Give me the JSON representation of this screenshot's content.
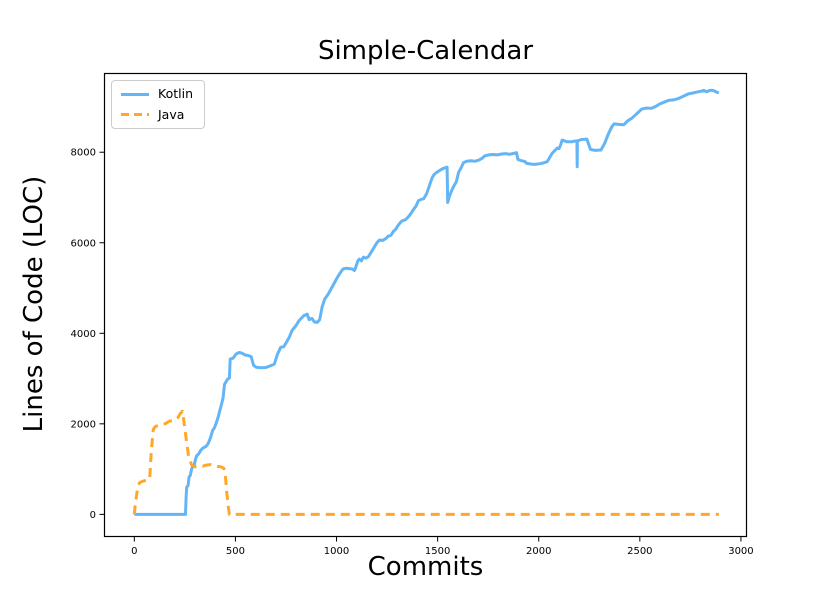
{
  "chart_data": {
    "type": "line",
    "title": "Simple-Calendar",
    "xlabel": "Commits",
    "ylabel": "Lines of Code (LOC)",
    "xlim": [
      -150,
      3030
    ],
    "ylim": [
      -500,
      9750
    ],
    "xticks": [
      0,
      500,
      1000,
      1500,
      2000,
      2500,
      3000
    ],
    "yticks": [
      0,
      2000,
      4000,
      6000,
      8000
    ],
    "grid": false,
    "legend_position": "upper-left",
    "axis_color": "#000000",
    "background_color": "#ffffff",
    "series": [
      {
        "name": "Kotlin",
        "color": "#64B5F6",
        "line_style": "solid",
        "points": [
          [
            0,
            0
          ],
          [
            253,
            0
          ],
          [
            256,
            380
          ],
          [
            259,
            600
          ],
          [
            266,
            640
          ],
          [
            271,
            830
          ],
          [
            277,
            860
          ],
          [
            283,
            1000
          ],
          [
            289,
            1060
          ],
          [
            296,
            1090
          ],
          [
            302,
            1210
          ],
          [
            309,
            1300
          ],
          [
            317,
            1330
          ],
          [
            329,
            1420
          ],
          [
            341,
            1470
          ],
          [
            354,
            1500
          ],
          [
            365,
            1560
          ],
          [
            377,
            1700
          ],
          [
            387,
            1850
          ],
          [
            397,
            1920
          ],
          [
            406,
            2030
          ],
          [
            415,
            2150
          ],
          [
            423,
            2300
          ],
          [
            431,
            2430
          ],
          [
            439,
            2580
          ],
          [
            446,
            2870
          ],
          [
            454,
            2930
          ],
          [
            462,
            2990
          ],
          [
            470,
            3010
          ],
          [
            474,
            3430
          ],
          [
            488,
            3450
          ],
          [
            503,
            3540
          ],
          [
            518,
            3575
          ],
          [
            533,
            3560
          ],
          [
            548,
            3520
          ],
          [
            563,
            3510
          ],
          [
            578,
            3480
          ],
          [
            590,
            3290
          ],
          [
            602,
            3250
          ],
          [
            626,
            3240
          ],
          [
            650,
            3245
          ],
          [
            672,
            3280
          ],
          [
            692,
            3320
          ],
          [
            708,
            3540
          ],
          [
            724,
            3690
          ],
          [
            739,
            3705
          ],
          [
            752,
            3800
          ],
          [
            766,
            3910
          ],
          [
            780,
            4060
          ],
          [
            798,
            4160
          ],
          [
            815,
            4280
          ],
          [
            838,
            4390
          ],
          [
            855,
            4425
          ],
          [
            865,
            4300
          ],
          [
            878,
            4330
          ],
          [
            891,
            4250
          ],
          [
            904,
            4240
          ],
          [
            917,
            4300
          ],
          [
            928,
            4570
          ],
          [
            941,
            4750
          ],
          [
            957,
            4850
          ],
          [
            973,
            4980
          ],
          [
            989,
            5110
          ],
          [
            1005,
            5240
          ],
          [
            1019,
            5340
          ],
          [
            1032,
            5420
          ],
          [
            1047,
            5435
          ],
          [
            1063,
            5430
          ],
          [
            1077,
            5420
          ],
          [
            1089,
            5390
          ],
          [
            1097,
            5480
          ],
          [
            1105,
            5600
          ],
          [
            1113,
            5640
          ],
          [
            1123,
            5600
          ],
          [
            1133,
            5680
          ],
          [
            1145,
            5660
          ],
          [
            1157,
            5690
          ],
          [
            1171,
            5790
          ],
          [
            1185,
            5890
          ],
          [
            1201,
            6010
          ],
          [
            1213,
            6060
          ],
          [
            1227,
            6050
          ],
          [
            1243,
            6090
          ],
          [
            1257,
            6150
          ],
          [
            1269,
            6165
          ],
          [
            1281,
            6250
          ],
          [
            1293,
            6300
          ],
          [
            1307,
            6400
          ],
          [
            1323,
            6480
          ],
          [
            1339,
            6505
          ],
          [
            1353,
            6560
          ],
          [
            1367,
            6640
          ],
          [
            1381,
            6740
          ],
          [
            1393,
            6810
          ],
          [
            1405,
            6930
          ],
          [
            1419,
            6960
          ],
          [
            1431,
            6970
          ],
          [
            1445,
            7080
          ],
          [
            1455,
            7200
          ],
          [
            1465,
            7340
          ],
          [
            1473,
            7440
          ],
          [
            1483,
            7510
          ],
          [
            1497,
            7560
          ],
          [
            1511,
            7600
          ],
          [
            1525,
            7635
          ],
          [
            1539,
            7660
          ],
          [
            1547,
            7670
          ],
          [
            1550,
            6890
          ],
          [
            1557,
            7010
          ],
          [
            1569,
            7150
          ],
          [
            1581,
            7260
          ],
          [
            1593,
            7350
          ],
          [
            1603,
            7550
          ],
          [
            1615,
            7650
          ],
          [
            1628,
            7770
          ],
          [
            1644,
            7800
          ],
          [
            1664,
            7810
          ],
          [
            1684,
            7800
          ],
          [
            1704,
            7825
          ],
          [
            1718,
            7860
          ],
          [
            1734,
            7920
          ],
          [
            1752,
            7940
          ],
          [
            1774,
            7950
          ],
          [
            1796,
            7940
          ],
          [
            1816,
            7960
          ],
          [
            1836,
            7970
          ],
          [
            1856,
            7955
          ],
          [
            1876,
            7975
          ],
          [
            1890,
            7990
          ],
          [
            1897,
            7840
          ],
          [
            1916,
            7810
          ],
          [
            1930,
            7800
          ],
          [
            1938,
            7760
          ],
          [
            1958,
            7740
          ],
          [
            1980,
            7730
          ],
          [
            2002,
            7745
          ],
          [
            2020,
            7760
          ],
          [
            2042,
            7790
          ],
          [
            2056,
            7900
          ],
          [
            2066,
            7975
          ],
          [
            2080,
            8040
          ],
          [
            2092,
            8090
          ],
          [
            2100,
            8080
          ],
          [
            2108,
            8160
          ],
          [
            2116,
            8270
          ],
          [
            2140,
            8230
          ],
          [
            2162,
            8230
          ],
          [
            2178,
            8245
          ],
          [
            2189,
            8250
          ],
          [
            2190,
            7680
          ],
          [
            2191,
            8250
          ],
          [
            2212,
            8280
          ],
          [
            2238,
            8290
          ],
          [
            2256,
            8060
          ],
          [
            2280,
            8040
          ],
          [
            2308,
            8050
          ],
          [
            2326,
            8200
          ],
          [
            2344,
            8400
          ],
          [
            2360,
            8550
          ],
          [
            2372,
            8625
          ],
          [
            2396,
            8615
          ],
          [
            2420,
            8605
          ],
          [
            2442,
            8700
          ],
          [
            2460,
            8750
          ],
          [
            2476,
            8815
          ],
          [
            2492,
            8880
          ],
          [
            2508,
            8950
          ],
          [
            2530,
            8975
          ],
          [
            2558,
            8970
          ],
          [
            2580,
            9015
          ],
          [
            2598,
            9065
          ],
          [
            2620,
            9105
          ],
          [
            2642,
            9145
          ],
          [
            2666,
            9155
          ],
          [
            2690,
            9185
          ],
          [
            2715,
            9235
          ],
          [
            2738,
            9285
          ],
          [
            2760,
            9305
          ],
          [
            2780,
            9325
          ],
          [
            2800,
            9345
          ],
          [
            2816,
            9365
          ],
          [
            2830,
            9335
          ],
          [
            2846,
            9365
          ],
          [
            2862,
            9365
          ],
          [
            2877,
            9332
          ],
          [
            2891,
            9310
          ]
        ]
      },
      {
        "name": "Java",
        "color": "#FFA726",
        "line_style": "dashed",
        "points": [
          [
            0,
            0
          ],
          [
            4,
            180
          ],
          [
            10,
            400
          ],
          [
            18,
            620
          ],
          [
            26,
            700
          ],
          [
            40,
            730
          ],
          [
            56,
            750
          ],
          [
            68,
            760
          ],
          [
            76,
            790
          ],
          [
            84,
            1400
          ],
          [
            94,
            1880
          ],
          [
            104,
            1940
          ],
          [
            118,
            1965
          ],
          [
            134,
            1990
          ],
          [
            154,
            2005
          ],
          [
            174,
            2060
          ],
          [
            198,
            2075
          ],
          [
            216,
            2140
          ],
          [
            228,
            2230
          ],
          [
            238,
            2280
          ],
          [
            248,
            1950
          ],
          [
            257,
            1650
          ],
          [
            268,
            1300
          ],
          [
            282,
            1100
          ],
          [
            298,
            1050
          ],
          [
            318,
            1060
          ],
          [
            338,
            1065
          ],
          [
            358,
            1090
          ],
          [
            378,
            1100
          ],
          [
            398,
            1080
          ],
          [
            414,
            1060
          ],
          [
            428,
            1050
          ],
          [
            442,
            1020
          ],
          [
            450,
            880
          ],
          [
            458,
            450
          ],
          [
            465,
            150
          ],
          [
            470,
            0
          ],
          [
            2891,
            0
          ]
        ]
      }
    ]
  }
}
